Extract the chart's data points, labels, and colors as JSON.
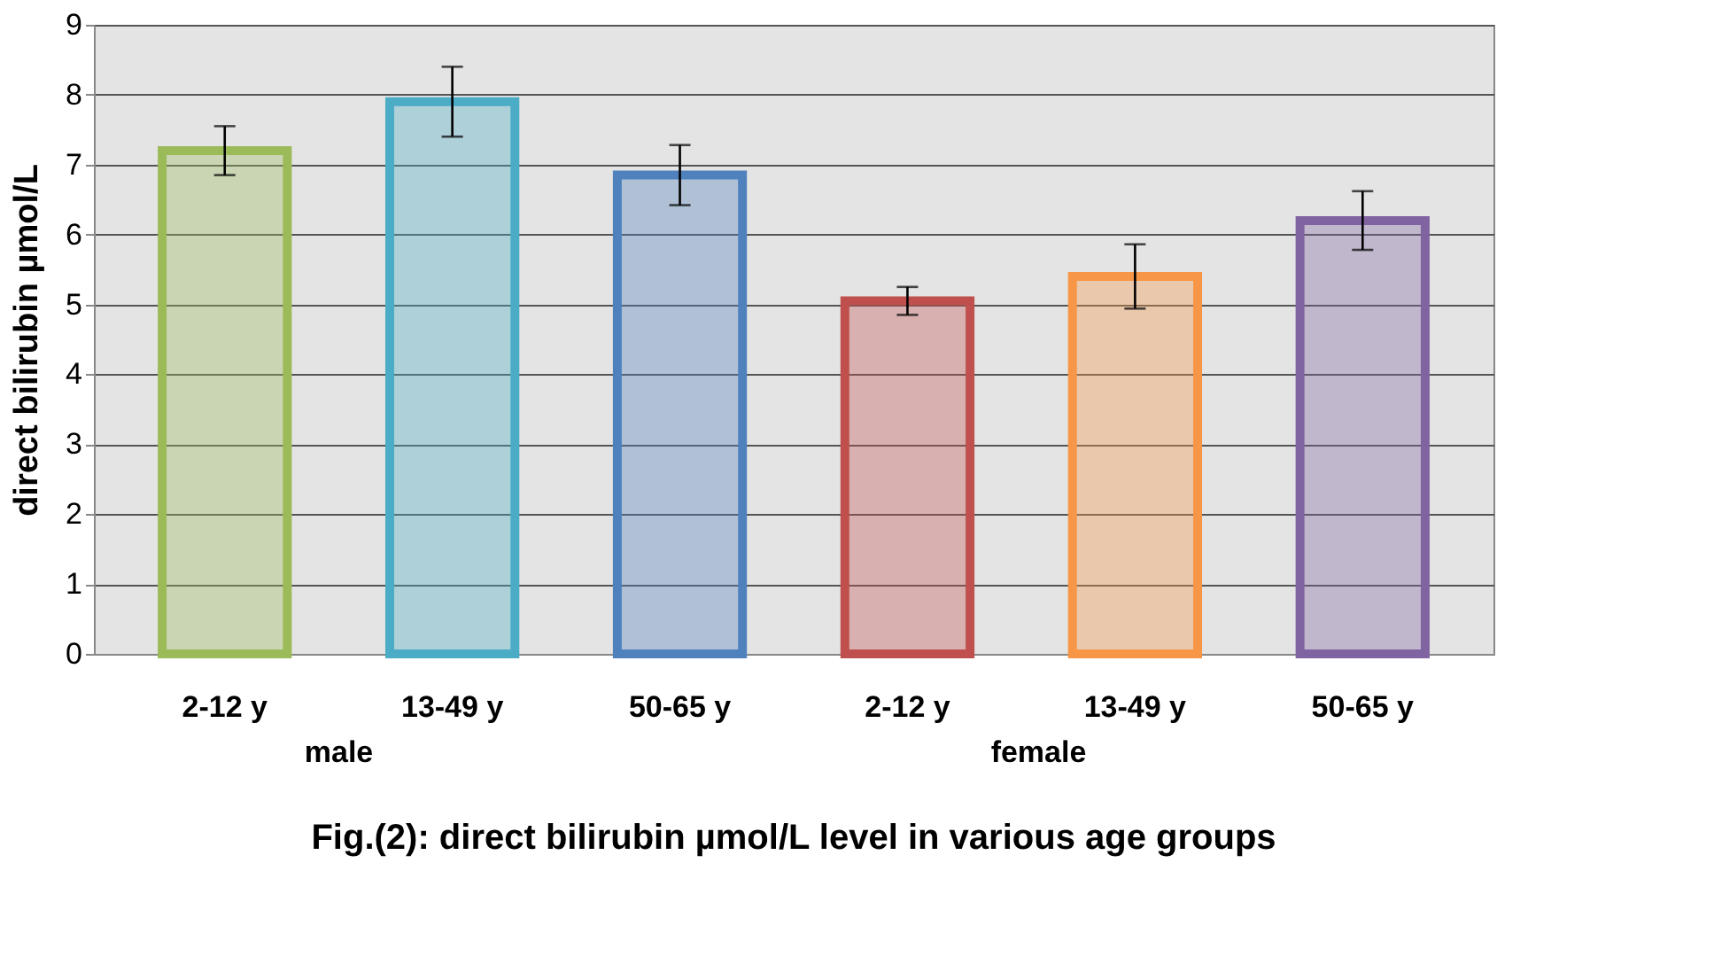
{
  "chart_data": {
    "type": "bar",
    "title": "Fig.(2): direct bilirubin µmol/L level in various age groups",
    "ylabel": "direct bilirubin µmol/L",
    "categories": [
      "2-12 y",
      "13-49 y",
      "50-65 y",
      "2-12 y",
      "13-49 y",
      "50-65 y"
    ],
    "values": [
      7.2,
      7.9,
      6.85,
      5.05,
      5.4,
      6.2
    ],
    "errors": [
      0.35,
      0.5,
      0.43,
      0.2,
      0.46,
      0.42
    ],
    "colors": [
      "#9bbb59",
      "#4bacc6",
      "#4f81bd",
      "#c0504d",
      "#f79646",
      "#8064a2"
    ],
    "annotations": [
      "male",
      "female"
    ],
    "ylim": [
      0,
      9
    ],
    "yticks": [
      0,
      1,
      2,
      3,
      4,
      5,
      6,
      7,
      8,
      9
    ],
    "grid": "y",
    "legend": false
  }
}
